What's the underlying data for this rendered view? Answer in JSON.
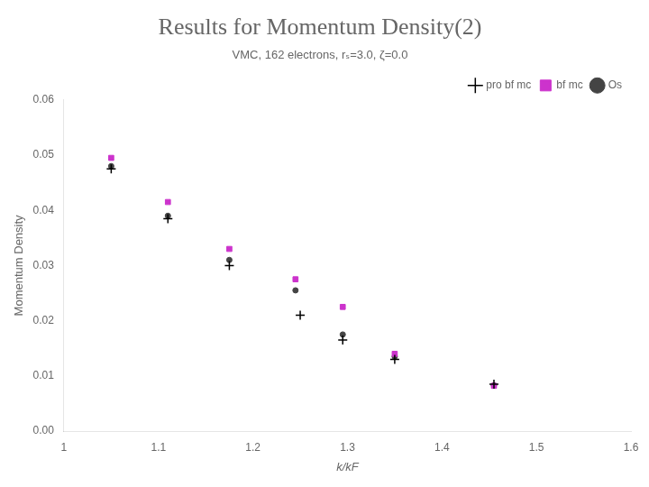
{
  "chart_data": {
    "type": "scatter",
    "title": "Results for Momentum Density(2)",
    "subtitle": "VMC, 162 electrons, rₛ=3.0, ζ=0.0",
    "xlabel": "k/kF",
    "ylabel": "Momentum Density",
    "xlim": [
      1.0,
      1.6
    ],
    "ylim": [
      0.0,
      0.06
    ],
    "xticks": [
      1,
      1.1,
      1.2,
      1.3,
      1.4,
      1.5,
      1.6
    ],
    "yticks": [
      {
        "value": 0,
        "label": "0.00"
      },
      0.01,
      0.02,
      0.03,
      0.04,
      0.05,
      0.06
    ],
    "grid": false,
    "legend": "upper right",
    "series": [
      {
        "name": "pro bf mc",
        "color": "#000000",
        "marker": "plus",
        "x": [
          1.05,
          1.11,
          1.175,
          1.25,
          1.295,
          1.35,
          1.455
        ],
        "values": [
          0.0475,
          0.0385,
          0.03,
          0.021,
          0.0165,
          0.013,
          0.0085
        ]
      },
      {
        "name": "bf mc",
        "color": "#cc33cc",
        "marker": "square",
        "x": [
          1.05,
          1.11,
          1.175,
          1.245,
          1.295,
          1.35,
          1.455
        ],
        "values": [
          0.0495,
          0.0415,
          0.033,
          0.0275,
          0.0225,
          0.014,
          0.0082
        ]
      },
      {
        "name": "Os",
        "color": "#444444",
        "marker": "point",
        "x": [
          1.05,
          1.11,
          1.175,
          1.245,
          1.295,
          1.35,
          1.455
        ],
        "values": [
          0.048,
          0.039,
          0.031,
          0.0255,
          0.0175,
          0.0135,
          0.0083
        ]
      }
    ]
  }
}
